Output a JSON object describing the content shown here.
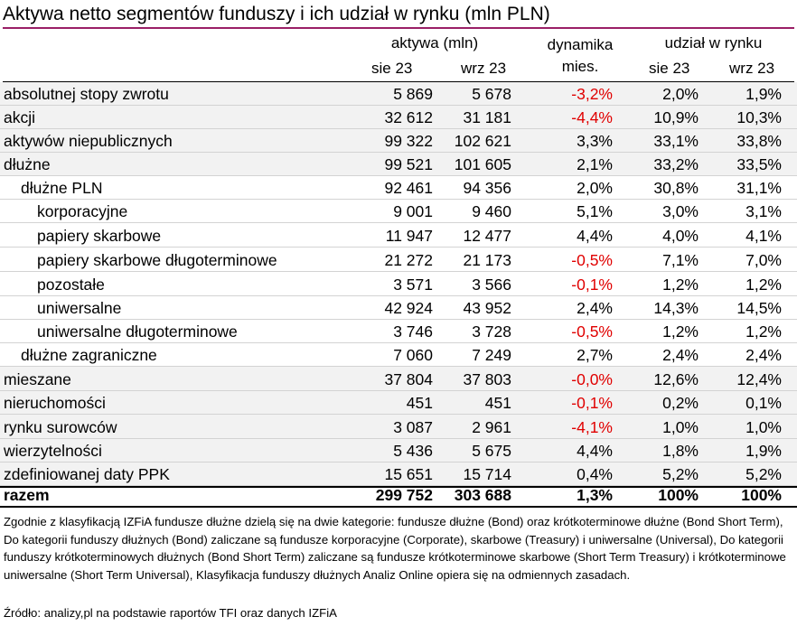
{
  "title": "Aktywa netto segmentów funduszy i ich udział w rynku (mln PLN)",
  "header": {
    "assets_group": "aktywa (mln)",
    "dynamics_line1": "dynamika",
    "dynamics_line2": "mies.",
    "share_group": "udział w rynku",
    "col_sie": "sie 23",
    "col_wrz": "wrz 23",
    "col_sie_share": "sie 23",
    "col_wrz_share": "wrz 23"
  },
  "rows": [
    {
      "label": "absolutnej stopy zwrotu",
      "indent": 0,
      "aug": "5 869",
      "sep": "5 678",
      "dyn": "-3,2%",
      "share_aug": "2,0%",
      "share_sep": "1,9%",
      "negative": true
    },
    {
      "label": "akcji",
      "indent": 0,
      "aug": "32 612",
      "sep": "31 181",
      "dyn": "-4,4%",
      "share_aug": "10,9%",
      "share_sep": "10,3%",
      "negative": true
    },
    {
      "label": "aktywów niepublicznych",
      "indent": 0,
      "aug": "99 322",
      "sep": "102 621",
      "dyn": "3,3%",
      "share_aug": "33,1%",
      "share_sep": "33,8%",
      "negative": false
    },
    {
      "label": "dłużne",
      "indent": 0,
      "aug": "99 521",
      "sep": "101 605",
      "dyn": "2,1%",
      "share_aug": "33,2%",
      "share_sep": "33,5%",
      "negative": false
    },
    {
      "label": "dłużne PLN",
      "indent": 1,
      "aug": "92 461",
      "sep": "94 356",
      "dyn": "2,0%",
      "share_aug": "30,8%",
      "share_sep": "31,1%",
      "negative": false
    },
    {
      "label": "korporacyjne",
      "indent": 2,
      "aug": "9 001",
      "sep": "9 460",
      "dyn": "5,1%",
      "share_aug": "3,0%",
      "share_sep": "3,1%",
      "negative": false
    },
    {
      "label": "papiery skarbowe",
      "indent": 2,
      "aug": "11 947",
      "sep": "12 477",
      "dyn": "4,4%",
      "share_aug": "4,0%",
      "share_sep": "4,1%",
      "negative": false
    },
    {
      "label": "papiery skarbowe długoterminowe",
      "indent": 2,
      "aug": "21 272",
      "sep": "21 173",
      "dyn": "-0,5%",
      "share_aug": "7,1%",
      "share_sep": "7,0%",
      "negative": true
    },
    {
      "label": "pozostałe",
      "indent": 2,
      "aug": "3 571",
      "sep": "3 566",
      "dyn": "-0,1%",
      "share_aug": "1,2%",
      "share_sep": "1,2%",
      "negative": true
    },
    {
      "label": "uniwersalne",
      "indent": 2,
      "aug": "42 924",
      "sep": "43 952",
      "dyn": "2,4%",
      "share_aug": "14,3%",
      "share_sep": "14,5%",
      "negative": false
    },
    {
      "label": "uniwersalne długoterminowe",
      "indent": 2,
      "aug": "3 746",
      "sep": "3 728",
      "dyn": "-0,5%",
      "share_aug": "1,2%",
      "share_sep": "1,2%",
      "negative": true
    },
    {
      "label": "dłużne zagraniczne",
      "indent": 1,
      "aug": "7 060",
      "sep": "7 249",
      "dyn": "2,7%",
      "share_aug": "2,4%",
      "share_sep": "2,4%",
      "negative": false
    },
    {
      "label": "mieszane",
      "indent": 0,
      "aug": "37 804",
      "sep": "37 803",
      "dyn": "-0,0%",
      "share_aug": "12,6%",
      "share_sep": "12,4%",
      "negative": true
    },
    {
      "label": "nieruchomości",
      "indent": 0,
      "aug": "451",
      "sep": "451",
      "dyn": "-0,1%",
      "share_aug": "0,2%",
      "share_sep": "0,1%",
      "negative": true
    },
    {
      "label": "rynku surowców",
      "indent": 0,
      "aug": "3 087",
      "sep": "2 961",
      "dyn": "-4,1%",
      "share_aug": "1,0%",
      "share_sep": "1,0%",
      "negative": true
    },
    {
      "label": "wierzytelności",
      "indent": 0,
      "aug": "5 436",
      "sep": "5 675",
      "dyn": "4,4%",
      "share_aug": "1,8%",
      "share_sep": "1,9%",
      "negative": false
    },
    {
      "label": "zdefiniowanej daty PPK",
      "indent": 0,
      "aug": "15 651",
      "sep": "15 714",
      "dyn": "0,4%",
      "share_aug": "5,2%",
      "share_sep": "5,2%",
      "negative": false
    }
  ],
  "total": {
    "label": "razem",
    "aug": "299 752",
    "sep": "303 688",
    "dyn": "1,3%",
    "share_aug": "100%",
    "share_sep": "100%"
  },
  "note": "Zgodnie z klasyfikacją IZFiA fundusze dłużne dzielą się na dwie kategorie: fundusze dłużne (Bond) oraz krótkoterminowe dłużne (Bond Short Term), Do kategorii funduszy dłużnych (Bond) zaliczane są fundusze korporacyjne (Corporate), skarbowe (Treasury) i uniwersalne (Universal), Do kategorii funduszy krótkoterminowych dłużnych (Bond Short Term) zaliczane są fundusze krótkoterminowe skarbowe (Short Term Treasury) i krótkoterminowe uniwersalne (Short Term Universal), Klasyfikacja funduszy dłużnych Analiz Online opiera się na odmiennych zasadach.",
  "source": "Źródło: analizy,pl na podstawie raportów TFI oraz danych IZFiA",
  "colors": {
    "accent_line": "#9a1f66",
    "negative": "#e00000",
    "row_shade": "#f2f2f2"
  }
}
